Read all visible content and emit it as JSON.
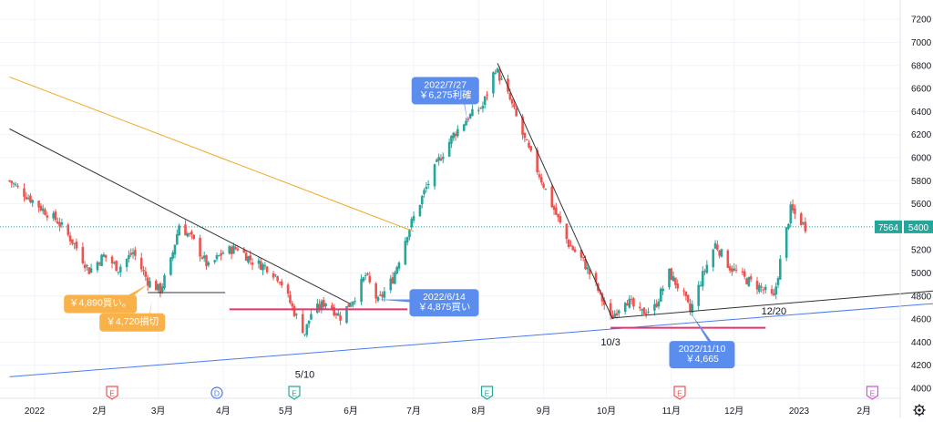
{
  "chart_data": {
    "type": "candlestick",
    "ylim": [
      3930,
      7290
    ],
    "y_ticks": [
      4000,
      4200,
      4400,
      4600,
      4800,
      5000,
      5200,
      5400,
      5600,
      5800,
      6000,
      6200,
      6400,
      6600,
      6800,
      7000,
      7200
    ],
    "x_ticks": [
      {
        "label": "2022",
        "date": "2022-01-01"
      },
      {
        "label": "2月",
        "date": "2022-02-01"
      },
      {
        "label": "3月",
        "date": "2022-03-01"
      },
      {
        "label": "4月",
        "date": "2022-04-01"
      },
      {
        "label": "5月",
        "date": "2022-05-01"
      },
      {
        "label": "6月",
        "date": "2022-06-01"
      },
      {
        "label": "7月",
        "date": "2022-07-01"
      },
      {
        "label": "8月",
        "date": "2022-08-01"
      },
      {
        "label": "9月",
        "date": "2022-09-01"
      },
      {
        "label": "10月",
        "date": "2022-10-01"
      },
      {
        "label": "11月",
        "date": "2022-11-01"
      },
      {
        "label": "12月",
        "date": "2022-12-01"
      },
      {
        "label": "2023",
        "date": "2023-01-01"
      },
      {
        "label": "2月",
        "date": "2023-02-01"
      }
    ],
    "price_line": {
      "value": 5400,
      "badge_left": "7564",
      "badge_right": "5400",
      "color": "#26a69a"
    },
    "colors": {
      "up": "#26a69a",
      "down": "#ef5350",
      "grid": "#f0f3fa"
    },
    "candle_anchors": [
      {
        "date": "2021-12-20",
        "close": 5800
      },
      {
        "date": "2022-01-05",
        "close": 5550
      },
      {
        "date": "2022-01-12",
        "close": 5450
      },
      {
        "date": "2022-01-20",
        "close": 5250
      },
      {
        "date": "2022-01-27",
        "close": 5020
      },
      {
        "date": "2022-02-03",
        "close": 5150
      },
      {
        "date": "2022-02-10",
        "close": 5040
      },
      {
        "date": "2022-02-17",
        "close": 5180
      },
      {
        "date": "2022-02-24",
        "close": 4930
      },
      {
        "date": "2022-03-02",
        "close": 4850
      },
      {
        "date": "2022-03-07",
        "close": 5100
      },
      {
        "date": "2022-03-11",
        "close": 5420
      },
      {
        "date": "2022-03-17",
        "close": 5300
      },
      {
        "date": "2022-03-25",
        "close": 5050
      },
      {
        "date": "2022-04-01",
        "close": 5180
      },
      {
        "date": "2022-04-08",
        "close": 5220
      },
      {
        "date": "2022-04-15",
        "close": 5100
      },
      {
        "date": "2022-04-22",
        "close": 5050
      },
      {
        "date": "2022-04-28",
        "close": 4950
      },
      {
        "date": "2022-05-06",
        "close": 4620
      },
      {
        "date": "2022-05-10",
        "close": 4480
      },
      {
        "date": "2022-05-13",
        "close": 4650
      },
      {
        "date": "2022-05-20",
        "close": 4750
      },
      {
        "date": "2022-05-27",
        "close": 4620
      },
      {
        "date": "2022-06-03",
        "close": 4800
      },
      {
        "date": "2022-06-08",
        "close": 4980
      },
      {
        "date": "2022-06-14",
        "close": 4750
      },
      {
        "date": "2022-06-21",
        "close": 4950
      },
      {
        "date": "2022-06-28",
        "close": 5350
      },
      {
        "date": "2022-07-06",
        "close": 5700
      },
      {
        "date": "2022-07-13",
        "close": 5980
      },
      {
        "date": "2022-07-20",
        "close": 6200
      },
      {
        "date": "2022-07-27",
        "close": 6350
      },
      {
        "date": "2022-08-03",
        "close": 6450
      },
      {
        "date": "2022-08-09",
        "close": 6780
      },
      {
        "date": "2022-08-16",
        "close": 6500
      },
      {
        "date": "2022-08-23",
        "close": 6150
      },
      {
        "date": "2022-08-30",
        "close": 5850
      },
      {
        "date": "2022-09-06",
        "close": 5550
      },
      {
        "date": "2022-09-13",
        "close": 5250
      },
      {
        "date": "2022-09-20",
        "close": 5100
      },
      {
        "date": "2022-09-27",
        "close": 4850
      },
      {
        "date": "2022-10-03",
        "close": 4600
      },
      {
        "date": "2022-10-10",
        "close": 4780
      },
      {
        "date": "2022-10-17",
        "close": 4650
      },
      {
        "date": "2022-10-24",
        "close": 4700
      },
      {
        "date": "2022-10-31",
        "close": 5000
      },
      {
        "date": "2022-11-07",
        "close": 4800
      },
      {
        "date": "2022-11-10",
        "close": 4665
      },
      {
        "date": "2022-11-16",
        "close": 4980
      },
      {
        "date": "2022-11-22",
        "close": 5250
      },
      {
        "date": "2022-11-29",
        "close": 5050
      },
      {
        "date": "2022-12-06",
        "close": 4950
      },
      {
        "date": "2022-12-13",
        "close": 4880
      },
      {
        "date": "2022-12-20",
        "close": 4780
      },
      {
        "date": "2022-12-23",
        "close": 5100
      },
      {
        "date": "2022-12-28",
        "close": 5550
      },
      {
        "date": "2023-01-04",
        "close": 5400
      }
    ],
    "trend_lines": [
      {
        "name": "orange-trendline",
        "color": "#f5a623",
        "p1": {
          "date": "2021-12-20",
          "value": 6700
        },
        "p2": {
          "date": "2022-07-01",
          "value": 5360
        }
      },
      {
        "name": "black-downtrend-line",
        "color": "#333333",
        "p1": {
          "date": "2021-12-20",
          "value": 6250
        },
        "p2": {
          "date": "2022-06-01",
          "value": 4730
        }
      },
      {
        "name": "black-uptrend-line",
        "color": "#333333",
        "p1": {
          "date": "2022-10-04",
          "value": 4610
        },
        "p2": {
          "date": "2023-03-10",
          "value": 4850
        }
      },
      {
        "name": "black-decline-line",
        "color": "#333333",
        "p1": {
          "date": "2022-08-10",
          "value": 6820
        },
        "p2": {
          "date": "2022-10-04",
          "value": 4600
        }
      },
      {
        "name": "blue-support-line",
        "color": "#4a7bf0",
        "p1": {
          "date": "2021-12-20",
          "value": 4100
        },
        "p2": {
          "date": "2023-03-10",
          "value": 4740
        }
      },
      {
        "name": "black-level-line",
        "color": "#333333",
        "p1": {
          "date": "2022-02-24",
          "value": 4830
        },
        "p2": {
          "date": "2022-04-02",
          "value": 4830
        }
      },
      {
        "name": "red-level-june",
        "color": "#e8336d",
        "p1": {
          "date": "2022-04-04",
          "value": 4685
        },
        "p2": {
          "date": "2022-06-28",
          "value": 4685
        }
      },
      {
        "name": "red-level-november",
        "color": "#e8336d",
        "p1": {
          "date": "2022-10-03",
          "value": 4525
        },
        "p2": {
          "date": "2022-12-16",
          "value": 4525
        }
      }
    ],
    "annotations": [
      {
        "name": "callout-july27",
        "lines": [
          "2022/7/27",
          "￥6,275利確"
        ],
        "color": "#5b8def",
        "box_date": "2022-06-30",
        "box_value": 6700,
        "box_width": 74,
        "point": {
          "date": "2022-07-27",
          "value": 6280
        }
      },
      {
        "name": "callout-june14",
        "lines": [
          "2022/6/14",
          "￥4,875買い"
        ],
        "color": "#5b8def",
        "box_date": "2022-06-29",
        "box_value": 4860,
        "box_width": 76,
        "point": {
          "date": "2022-06-14",
          "value": 4770
        }
      },
      {
        "name": "callout-nov10",
        "lines": [
          "2022/11/10",
          "￥4,665"
        ],
        "color": "#5b8def",
        "box_date": "2022-10-31",
        "box_value": 4410,
        "box_width": 72,
        "point": {
          "date": "2022-11-10",
          "value": 4660
        }
      },
      {
        "name": "callout-buy-4890",
        "lines": [
          "￥4,890買い。"
        ],
        "color": "#f9b14a",
        "box_date": "2022-01-15",
        "box_value": 4810,
        "box_width": 80,
        "point": {
          "date": "2022-02-24",
          "value": 4900
        }
      },
      {
        "name": "callout-stop-4720",
        "lines": [
          "￥4,720損切"
        ],
        "color": "#f9b14a",
        "box_date": "2022-02-01",
        "box_value": 4650,
        "box_width": 72,
        "point": {
          "date": "2022-02-26",
          "value": 4770
        }
      }
    ],
    "date_labels": [
      {
        "name": "label-5-10",
        "text": "5/10",
        "date": "2022-05-10",
        "value": 4090
      },
      {
        "name": "label-10-3",
        "text": "10/3",
        "date": "2022-10-03",
        "value": 4370
      },
      {
        "name": "label-12-20",
        "text": "12/20",
        "date": "2022-12-20",
        "value": 4640
      }
    ],
    "event_markers": [
      {
        "letter": "E",
        "date": "2022-02-07",
        "color": "#ef5350"
      },
      {
        "letter": "D",
        "date": "2022-03-29",
        "color": "#4a7bf0"
      },
      {
        "letter": "E",
        "date": "2022-05-05",
        "color": "#26a69a"
      },
      {
        "letter": "E",
        "date": "2022-08-05",
        "color": "#26a69a"
      },
      {
        "letter": "E",
        "date": "2022-11-05",
        "color": "#ef5350"
      },
      {
        "letter": "E",
        "date": "2023-02-05",
        "color": "#d54fe0"
      }
    ],
    "settings_icon": "gear-icon"
  }
}
